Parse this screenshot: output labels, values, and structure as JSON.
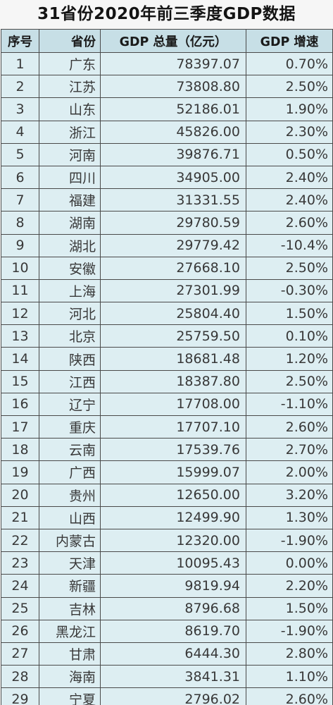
{
  "title": "31省份2020年前三季度GDP数据",
  "header": {
    "rank": "序号",
    "province": "省份",
    "total": "GDP 总量（亿元）",
    "growth": "GDP 增速"
  },
  "rows": [
    {
      "rank": "1",
      "province": "广东",
      "total": "78397.07",
      "growth": "0.70%"
    },
    {
      "rank": "2",
      "province": "江苏",
      "total": "73808.80",
      "growth": "2.50%"
    },
    {
      "rank": "3",
      "province": "山东",
      "total": "52186.01",
      "growth": "1.90%"
    },
    {
      "rank": "4",
      "province": "浙江",
      "total": "45826.00",
      "growth": "2.30%"
    },
    {
      "rank": "5",
      "province": "河南",
      "total": "39876.71",
      "growth": "0.50%"
    },
    {
      "rank": "6",
      "province": "四川",
      "total": "34905.00",
      "growth": "2.40%"
    },
    {
      "rank": "7",
      "province": "福建",
      "total": "31331.55",
      "growth": "2.40%"
    },
    {
      "rank": "8",
      "province": "湖南",
      "total": "29780.59",
      "growth": "2.60%"
    },
    {
      "rank": "9",
      "province": "湖北",
      "total": "29779.42",
      "growth": "-10.4%"
    },
    {
      "rank": "10",
      "province": "安徽",
      "total": "27668.10",
      "growth": "2.50%"
    },
    {
      "rank": "11",
      "province": "上海",
      "total": "27301.99",
      "growth": "-0.30%"
    },
    {
      "rank": "12",
      "province": "河北",
      "total": "25804.40",
      "growth": "1.50%"
    },
    {
      "rank": "13",
      "province": "北京",
      "total": "25759.50",
      "growth": "0.10%"
    },
    {
      "rank": "14",
      "province": "陕西",
      "total": "18681.48",
      "growth": "1.20%"
    },
    {
      "rank": "15",
      "province": "江西",
      "total": "18387.80",
      "growth": "2.50%"
    },
    {
      "rank": "16",
      "province": "辽宁",
      "total": "17708.00",
      "growth": "-1.10%"
    },
    {
      "rank": "17",
      "province": "重庆",
      "total": "17707.10",
      "growth": "2.60%"
    },
    {
      "rank": "18",
      "province": "云南",
      "total": "17539.76",
      "growth": "2.70%"
    },
    {
      "rank": "19",
      "province": "广西",
      "total": "15999.07",
      "growth": "2.00%"
    },
    {
      "rank": "20",
      "province": "贵州",
      "total": "12650.00",
      "growth": "3.20%"
    },
    {
      "rank": "21",
      "province": "山西",
      "total": "12499.90",
      "growth": "1.30%"
    },
    {
      "rank": "22",
      "province": "内蒙古",
      "total": "12320.00",
      "growth": "-1.90%"
    },
    {
      "rank": "23",
      "province": "天津",
      "total": "10095.43",
      "growth": "0.00%"
    },
    {
      "rank": "24",
      "province": "新疆",
      "total": "9819.94",
      "growth": "2.20%"
    },
    {
      "rank": "25",
      "province": "吉林",
      "total": "8796.68",
      "growth": "1.50%"
    },
    {
      "rank": "26",
      "province": "黑龙江",
      "total": "8619.70",
      "growth": "-1.90%"
    },
    {
      "rank": "27",
      "province": "甘肃",
      "total": "6444.30",
      "growth": "2.80%"
    },
    {
      "rank": "28",
      "province": "海南",
      "total": "3841.31",
      "growth": "1.10%"
    },
    {
      "rank": "29",
      "province": "宁夏",
      "total": "2796.02",
      "growth": "2.60%"
    }
  ]
}
